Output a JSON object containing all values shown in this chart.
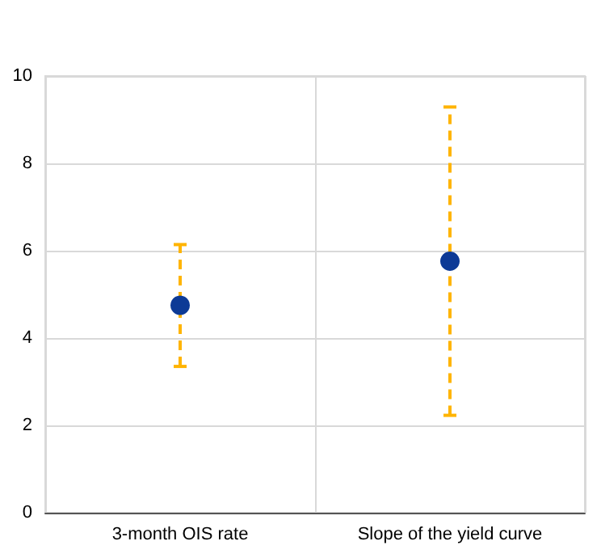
{
  "chart_data": {
    "type": "scatter",
    "categories": [
      "3-month OIS rate",
      "Slope of the yield curve"
    ],
    "series": [
      {
        "color": "#0d3a96",
        "values": [
          4.75,
          5.76
        ],
        "errors": [
          [
            3.35,
            6.14
          ],
          [
            2.23,
            9.29
          ]
        ]
      }
    ],
    "ylim": [
      0,
      10
    ],
    "yticks": [
      0,
      2,
      4,
      6,
      8,
      10
    ],
    "grid": true,
    "marker": "circle",
    "line_style": "dashed"
  }
}
